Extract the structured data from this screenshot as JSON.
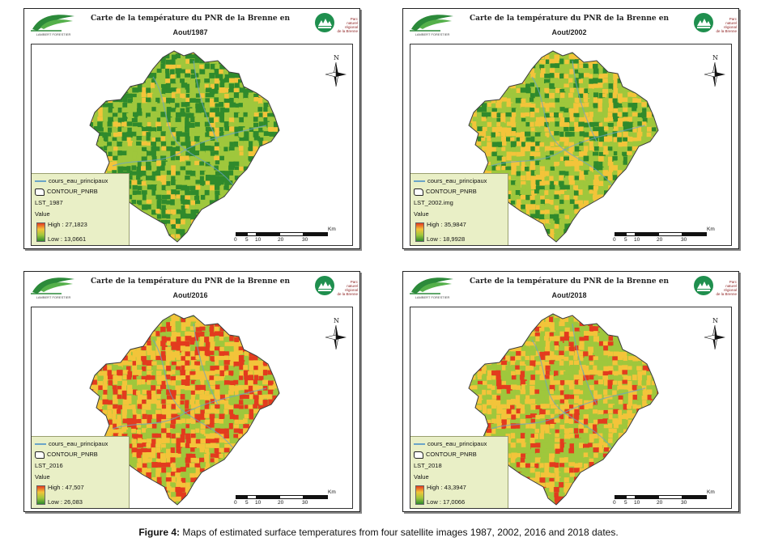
{
  "caption": {
    "label": "Figure 4:",
    "text": "Maps of estimated surface temperatures from four satellite images 1987, 2002, 2016 and 2018 dates."
  },
  "common": {
    "title_line1": "Carte de la température  du PNR de la Brenne en",
    "legend_river": "cours_eau_principaux",
    "legend_contour": "CONTOUR_PNRB",
    "legend_value": "Value",
    "north_letter": "N",
    "scale_unit": "Km",
    "scale_ticks": [
      "0",
      "5",
      "10",
      "20",
      "30"
    ],
    "logo_left_text": "LAMBERT FORESTIER",
    "logo_right_text": [
      "Parc",
      "naturel",
      "régional",
      "de la Brenne"
    ]
  },
  "colors": {
    "high": "#e33b1e",
    "mid": "#f3c43a",
    "low_mid": "#9fc73c",
    "low": "#2f8a2c",
    "river": "#6aa4c8",
    "legend_bg": "#e9efc6"
  },
  "maps": [
    {
      "title_line2": "Aout/1987",
      "layer": "LST_1987",
      "high": "High : 27,1823",
      "low": "Low : 13,0661",
      "warmth": 0.25
    },
    {
      "title_line2": "Aout/2002",
      "layer": "LST_2002.img",
      "high": "High : 35,9847",
      "low": "Low : 18,9928",
      "warmth": 0.45
    },
    {
      "title_line2": "Aout/2016",
      "layer": "LST_2016",
      "high": "High : 47,507",
      "low": "Low : 26,083",
      "warmth": 0.8
    },
    {
      "title_line2": "Aout/2018",
      "layer": "LST_2018",
      "high": "High : 43,3947",
      "low": "Low : 17,0066",
      "warmth": 0.65
    }
  ]
}
